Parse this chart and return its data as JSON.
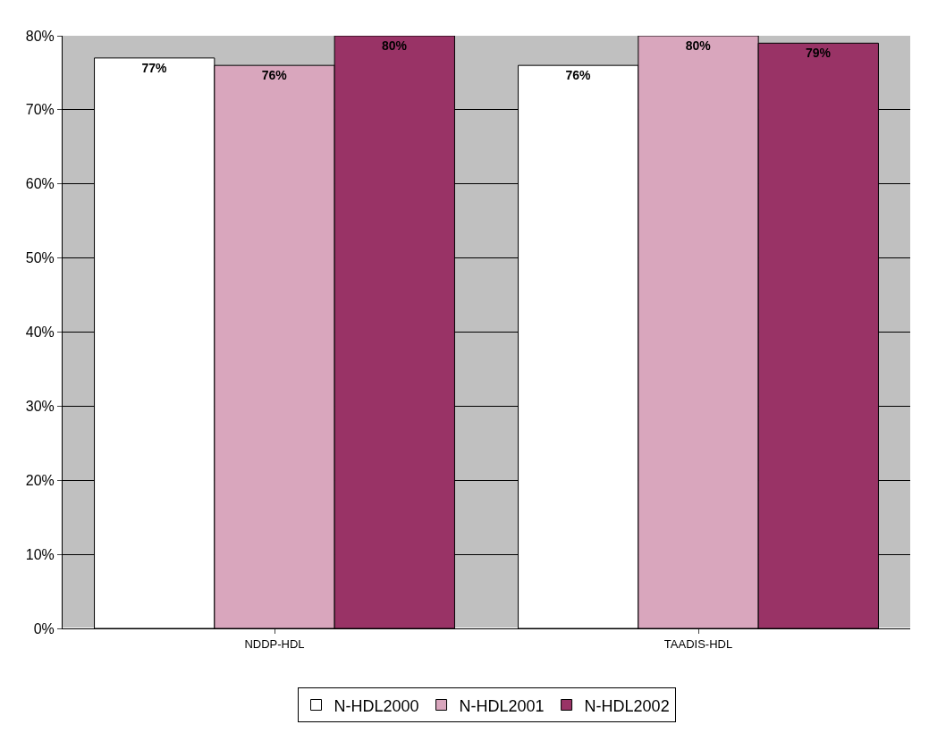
{
  "chart_data": {
    "type": "bar",
    "categories": [
      "NDDP-HDL",
      "TAADIS-HDL"
    ],
    "series": [
      {
        "name": "N-HDL2000",
        "color": "#ffffff",
        "values": [
          77,
          76
        ],
        "value_labels": [
          "77%",
          "76%"
        ]
      },
      {
        "name": "N-HDL2001",
        "color": "#d9a6bd",
        "values": [
          76,
          80
        ],
        "value_labels": [
          "76%",
          "80%"
        ]
      },
      {
        "name": "N-HDL2002",
        "color": "#993366",
        "values": [
          80,
          79
        ],
        "value_labels": [
          "80%",
          "79%"
        ]
      }
    ],
    "ylim": [
      0,
      80
    ],
    "yticks": [
      {
        "value": 0,
        "label": "0%"
      },
      {
        "value": 10,
        "label": "10%"
      },
      {
        "value": 20,
        "label": "20%"
      },
      {
        "value": 30,
        "label": "30%"
      },
      {
        "value": 40,
        "label": "40%"
      },
      {
        "value": 50,
        "label": "50%"
      },
      {
        "value": 60,
        "label": "60%"
      },
      {
        "value": 70,
        "label": "70%"
      },
      {
        "value": 80,
        "label": "80%"
      }
    ],
    "grid": "y",
    "legend": "bottom"
  }
}
